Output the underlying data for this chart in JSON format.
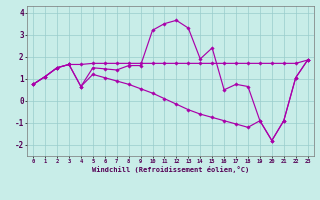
{
  "xlabel": "Windchill (Refroidissement éolien,°C)",
  "background_color": "#c8ede8",
  "line_color": "#aa00aa",
  "grid_color": "#99cccc",
  "xlim": [
    -0.5,
    23.5
  ],
  "ylim": [
    -2.5,
    4.3
  ],
  "xticks": [
    0,
    1,
    2,
    3,
    4,
    5,
    6,
    7,
    8,
    9,
    10,
    11,
    12,
    13,
    14,
    15,
    16,
    17,
    18,
    19,
    20,
    21,
    22,
    23
  ],
  "yticks": [
    -2,
    -1,
    0,
    1,
    2,
    3,
    4
  ],
  "line1_x": [
    0,
    1,
    2,
    3,
    4,
    5,
    6,
    7,
    8,
    9,
    10,
    11,
    12,
    13,
    14,
    15,
    16,
    17,
    18,
    19,
    20,
    21,
    22,
    23
  ],
  "line1_y": [
    0.75,
    1.1,
    1.5,
    1.65,
    0.65,
    1.5,
    1.45,
    1.4,
    1.6,
    1.6,
    3.2,
    3.5,
    3.65,
    3.3,
    1.9,
    2.4,
    0.5,
    0.75,
    0.65,
    -0.9,
    -1.8,
    -0.9,
    1.05,
    1.85
  ],
  "line2_x": [
    0,
    1,
    2,
    3,
    4,
    5,
    6,
    7,
    8,
    9,
    10,
    11,
    12,
    13,
    14,
    15,
    16,
    17,
    18,
    19,
    20,
    21,
    22,
    23
  ],
  "line2_y": [
    0.75,
    1.1,
    1.5,
    1.65,
    1.65,
    1.7,
    1.7,
    1.7,
    1.7,
    1.7,
    1.7,
    1.7,
    1.7,
    1.7,
    1.7,
    1.7,
    1.7,
    1.7,
    1.7,
    1.7,
    1.7,
    1.7,
    1.7,
    1.85
  ],
  "line3_x": [
    0,
    1,
    2,
    3,
    4,
    5,
    6,
    7,
    8,
    9,
    10,
    11,
    12,
    13,
    14,
    15,
    16,
    17,
    18,
    19,
    20,
    21,
    22,
    23
  ],
  "line3_y": [
    0.75,
    1.1,
    1.5,
    1.65,
    0.65,
    1.2,
    1.05,
    0.9,
    0.75,
    0.55,
    0.35,
    0.1,
    -0.15,
    -0.4,
    -0.6,
    -0.75,
    -0.9,
    -1.05,
    -1.2,
    -0.9,
    -1.8,
    -0.9,
    1.05,
    1.85
  ]
}
